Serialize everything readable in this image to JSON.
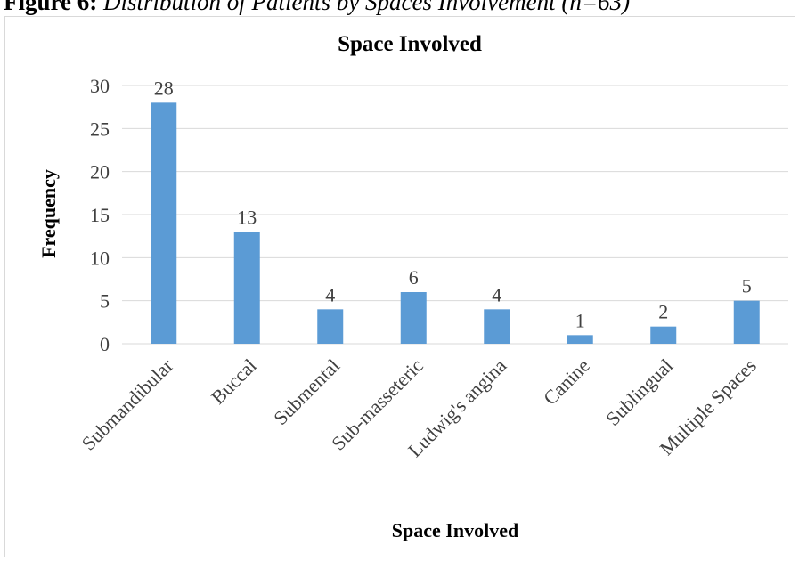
{
  "caption": {
    "label": "Figure 6:",
    "text": "Distribution of Patients by Spaces Involvement (n=63)"
  },
  "chart_data": {
    "type": "bar",
    "title": "Space Involved",
    "xlabel": "Space Involved",
    "ylabel": "Frequency",
    "categories": [
      "Submandibular",
      "Buccal",
      "Submental",
      "Sub-masseteric",
      "Ludwig's angina",
      "Canine",
      "Sublingual",
      "Multiple Spaces"
    ],
    "values": [
      28,
      13,
      4,
      6,
      4,
      1,
      2,
      5
    ],
    "ylim": [
      0,
      30
    ],
    "yticks": [
      "0",
      "5",
      "10",
      "15",
      "20",
      "25",
      "30"
    ],
    "grid": true,
    "legend": "none",
    "bar_color": "#5b9bd5"
  }
}
